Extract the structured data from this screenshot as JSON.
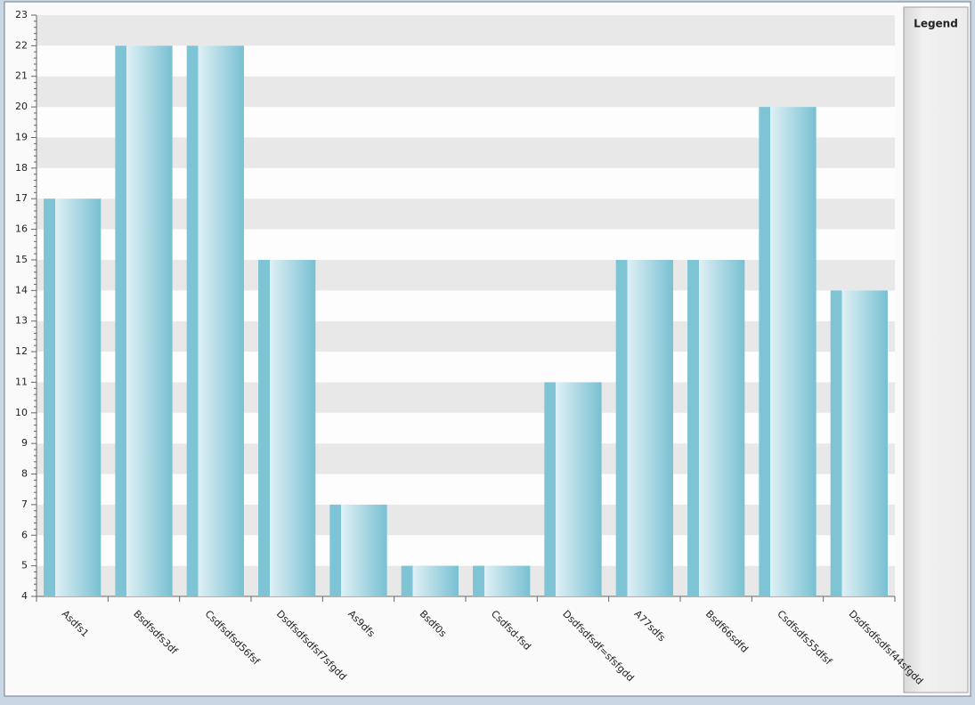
{
  "chart_data": {
    "type": "bar",
    "categories": [
      "Asdfs1",
      "Bsdfsdfs3df",
      "Csdfsdfsd56fsf",
      "Dsdfsdfsdfsf7sfgdd",
      "As9dfs",
      "Bsdf0s",
      "Csdfsd-fsd",
      "Dsdfsdfsdf=sfsfgdd",
      "A77sdfs",
      "Bsdf66sdfd",
      "Csdfsdfs55dfsf",
      "Dsdfsdfsdfsf44sfgdd"
    ],
    "values": [
      17,
      22,
      22,
      15,
      7,
      5,
      5,
      11,
      15,
      15,
      20,
      14
    ],
    "color": "#7ec4d5",
    "ylim": [
      4,
      23
    ],
    "yticks": [
      4,
      5,
      6,
      7,
      8,
      9,
      10,
      11,
      12,
      13,
      14,
      15,
      16,
      17,
      18,
      19,
      20,
      21,
      22,
      23
    ],
    "grid": true,
    "legend": {
      "title": "Legend"
    }
  }
}
